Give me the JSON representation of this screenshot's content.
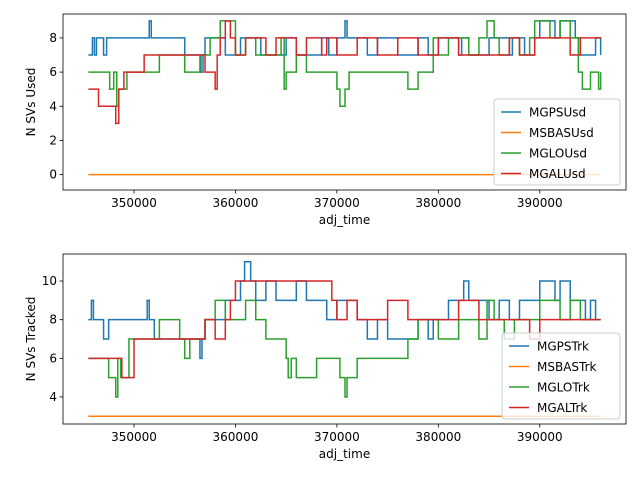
{
  "chart_data": [
    {
      "type": "line",
      "xlabel": "adj_time",
      "ylabel": "N SVs Used",
      "xlim": [
        343000,
        398500
      ],
      "ylim": [
        -0.9,
        9.4
      ],
      "xticks": [
        350000,
        360000,
        370000,
        380000,
        390000
      ],
      "xtick_labels": [
        "350000",
        "360000",
        "370000",
        "380000",
        "390000"
      ],
      "yticks": [
        0,
        2,
        4,
        6,
        8
      ],
      "ytick_labels": [
        "0",
        "2",
        "4",
        "6",
        "8"
      ],
      "legend_position": "lower right",
      "series": [
        {
          "name": "MGPSUsd",
          "color": "#1f77b4",
          "x": [
            345500,
            345900,
            346100,
            346300,
            347000,
            347300,
            350000,
            351400,
            351500,
            351700,
            355000,
            356600,
            356800,
            357000,
            359000,
            360500,
            362500,
            365000,
            366000,
            368500,
            369200,
            370000,
            370800,
            371000,
            373000,
            374000,
            376000,
            378000,
            379000,
            380000,
            382000,
            382300,
            383000,
            385000,
            387000,
            387300,
            388500,
            389500,
            390000,
            391500,
            392000,
            393500,
            394000,
            395500,
            396000
          ],
          "y": [
            7,
            8,
            7,
            8,
            7,
            8,
            8,
            8,
            9,
            8,
            7,
            6,
            7,
            8,
            7,
            8,
            7,
            8,
            7,
            8,
            7,
            8,
            9,
            8,
            7,
            8,
            7,
            8,
            7,
            8,
            7,
            8,
            7,
            8,
            7,
            8,
            7,
            8,
            9,
            8,
            9,
            8,
            7,
            8,
            7
          ]
        },
        {
          "name": "MSBASUsd",
          "color": "#ff7f0e",
          "x": [
            345500,
            396000
          ],
          "y": [
            0,
            0
          ]
        },
        {
          "name": "MGLOUsd",
          "color": "#2ca02c",
          "x": [
            345500,
            347200,
            347600,
            348000,
            348300,
            348500,
            349300,
            349800,
            352500,
            355000,
            356500,
            357500,
            358500,
            360000,
            361000,
            362000,
            364500,
            364800,
            365000,
            366000,
            367000,
            369000,
            370000,
            370300,
            370800,
            371200,
            372000,
            376500,
            377000,
            378000,
            379500,
            380000,
            381000,
            383000,
            384000,
            384800,
            385500,
            386000,
            387000,
            388000,
            389000,
            389500,
            391000,
            392000,
            393000,
            393800,
            394200,
            395000,
            395800,
            396000
          ],
          "y": [
            6,
            6,
            5,
            6,
            4,
            5,
            6,
            6,
            7,
            6,
            7,
            8,
            9,
            7,
            8,
            7,
            8,
            5,
            6,
            7,
            6,
            6,
            5,
            4,
            5,
            6,
            6,
            6,
            5,
            6,
            8,
            7,
            8,
            7,
            8,
            9,
            8,
            7,
            8,
            7,
            8,
            9,
            8,
            9,
            8,
            6,
            5,
            6,
            5,
            6
          ]
        },
        {
          "name": "MGALUsd",
          "color": "#d62728",
          "x": [
            345500,
            346500,
            347000,
            348000,
            348200,
            348500,
            349000,
            350000,
            351000,
            353000,
            354000,
            356500,
            357000,
            358000,
            358200,
            358500,
            359000,
            359500,
            360000,
            361000,
            363000,
            364000,
            366000,
            367000,
            368500,
            369000,
            370000,
            372000,
            374000,
            376000,
            378000,
            380000,
            382000,
            383000,
            385000,
            387000,
            388000,
            389500,
            390500,
            392000,
            393000,
            394000,
            396000
          ],
          "y": [
            5,
            4,
            4,
            4,
            3,
            5,
            6,
            6,
            7,
            7,
            7,
            7,
            6,
            5,
            7,
            8,
            9,
            8,
            7,
            8,
            7,
            8,
            7,
            8,
            7,
            8,
            7,
            8,
            7,
            8,
            7,
            8,
            7,
            7,
            7,
            8,
            7,
            8,
            8,
            8,
            7,
            8,
            8
          ]
        }
      ]
    },
    {
      "type": "line",
      "xlabel": "adj_time",
      "ylabel": "N SVs Tracked",
      "xlim": [
        343000,
        398500
      ],
      "ylim": [
        2.6,
        11.4
      ],
      "xticks": [
        350000,
        360000,
        370000,
        380000,
        390000
      ],
      "xtick_labels": [
        "350000",
        "360000",
        "370000",
        "380000",
        "390000"
      ],
      "yticks": [
        4,
        6,
        8,
        10
      ],
      "ytick_labels": [
        "4",
        "6",
        "8",
        "10"
      ],
      "legend_position": "lower right",
      "series": [
        {
          "name": "MGPSTrk",
          "color": "#1f77b4",
          "x": [
            345500,
            345800,
            346000,
            347000,
            347500,
            350000,
            351300,
            351500,
            352000,
            355000,
            356500,
            356700,
            357000,
            359000,
            360500,
            360900,
            361500,
            362000,
            363000,
            364000,
            366000,
            367000,
            369000,
            370000,
            372000,
            373000,
            374000,
            375000,
            378000,
            379000,
            379500,
            381000,
            382500,
            383000,
            385000,
            386000,
            387000,
            388000,
            389000,
            390000,
            391500,
            392000,
            393000,
            394500,
            395000,
            395500,
            396000
          ],
          "y": [
            8,
            9,
            8,
            7,
            8,
            8,
            9,
            8,
            7,
            7,
            6,
            7,
            8,
            9,
            10,
            11,
            10,
            9,
            10,
            9,
            10,
            9,
            8,
            9,
            8,
            7,
            8,
            7,
            8,
            7,
            8,
            9,
            10,
            9,
            8,
            9,
            8,
            9,
            9,
            10,
            9,
            10,
            9,
            8,
            9,
            8,
            8
          ]
        },
        {
          "name": "MSBASTrk",
          "color": "#ff7f0e",
          "x": [
            345500,
            396000
          ],
          "y": [
            3,
            3
          ]
        },
        {
          "name": "MGLOTrk",
          "color": "#2ca02c",
          "x": [
            345500,
            347500,
            348200,
            348400,
            348700,
            349500,
            352500,
            354500,
            355000,
            355500,
            357000,
            358000,
            359000,
            361000,
            362000,
            363000,
            365000,
            365200,
            365500,
            366000,
            368000,
            370000,
            370300,
            370800,
            371000,
            372000,
            377000,
            378000,
            380000,
            382000,
            384000,
            384800,
            385500,
            386500,
            387500,
            389000,
            390000,
            392000,
            393000,
            394000,
            396000
          ],
          "y": [
            6,
            5,
            4,
            6,
            5,
            7,
            8,
            7,
            6,
            7,
            8,
            9,
            8,
            9,
            8,
            7,
            6,
            5,
            6,
            5,
            6,
            6,
            5,
            4,
            5,
            6,
            7,
            8,
            7,
            8,
            7,
            9,
            8,
            7,
            8,
            8,
            9,
            8,
            9,
            8,
            8
          ]
        },
        {
          "name": "MGALTrk",
          "color": "#d62728",
          "x": [
            345500,
            348000,
            348800,
            350000,
            356500,
            357000,
            358000,
            359000,
            359500,
            360000,
            361000,
            369000,
            369500,
            370000,
            371000,
            372000,
            375000,
            377000,
            378500,
            380000,
            382000,
            384000,
            386000,
            387000,
            388000,
            389000,
            390000,
            392500,
            396000
          ],
          "y": [
            6,
            6,
            5,
            7,
            7,
            8,
            7,
            8,
            9,
            10,
            10,
            10,
            9,
            8,
            9,
            8,
            9,
            8,
            8,
            8,
            9,
            8,
            8,
            8,
            8,
            7,
            8,
            8,
            8
          ]
        }
      ]
    }
  ]
}
